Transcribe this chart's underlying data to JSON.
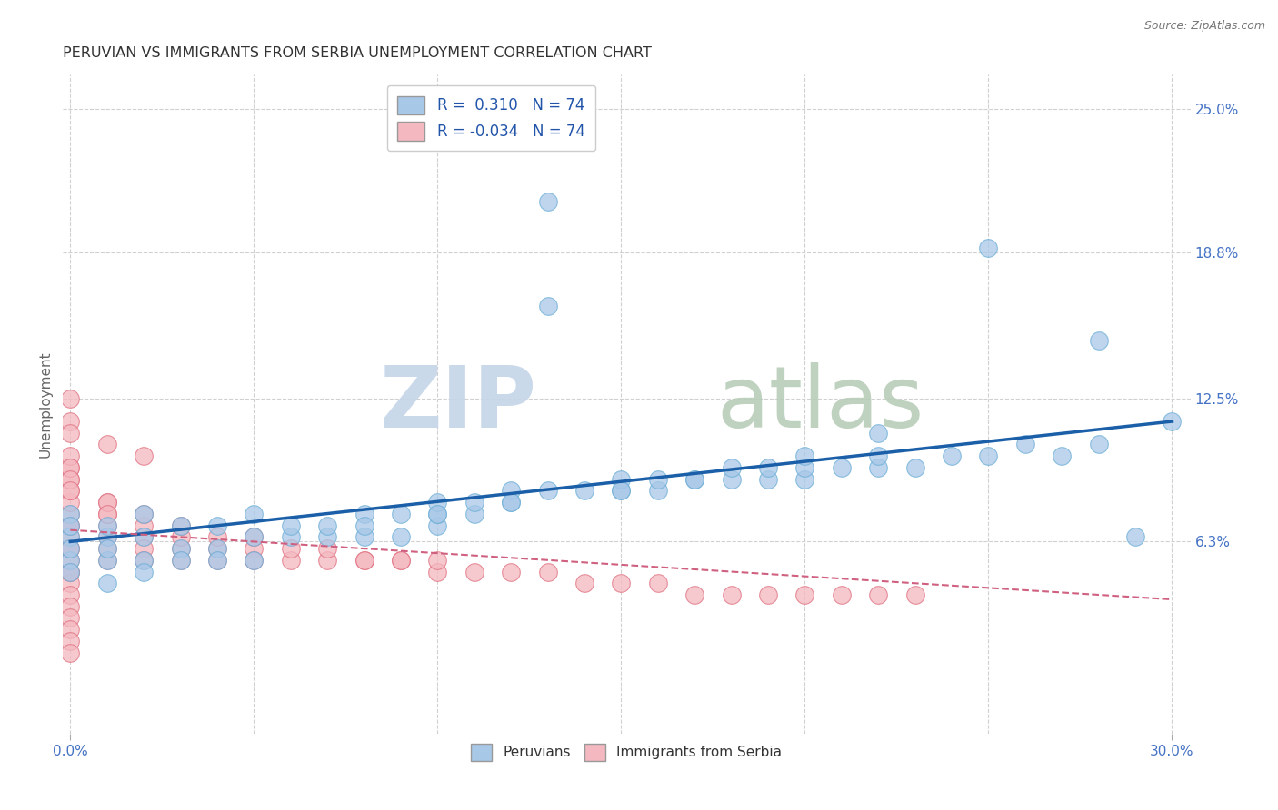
{
  "title": "PERUVIAN VS IMMIGRANTS FROM SERBIA UNEMPLOYMENT CORRELATION CHART",
  "source": "Source: ZipAtlas.com",
  "ylabel": "Unemployment",
  "xlim": [
    -0.002,
    0.305
  ],
  "ylim": [
    -0.02,
    0.265
  ],
  "ytick_labels_right": [
    "6.3%",
    "12.5%",
    "18.8%",
    "25.0%"
  ],
  "ytick_vals_right": [
    0.063,
    0.125,
    0.188,
    0.25
  ],
  "blue_color": "#a8c8e8",
  "blue_edge_color": "#6baed6",
  "pink_color": "#f4b8c0",
  "pink_edge_color": "#e07080",
  "blue_line_color": "#1a5fa8",
  "pink_line_color": "#d06080",
  "background_color": "#ffffff",
  "grid_color": "#d0d0d0",
  "blue_scatter_x": [
    0.0,
    0.0,
    0.0,
    0.0,
    0.0,
    0.0,
    0.01,
    0.01,
    0.01,
    0.01,
    0.01,
    0.02,
    0.02,
    0.02,
    0.02,
    0.03,
    0.03,
    0.03,
    0.04,
    0.04,
    0.04,
    0.05,
    0.05,
    0.05,
    0.06,
    0.06,
    0.07,
    0.07,
    0.08,
    0.08,
    0.09,
    0.09,
    0.1,
    0.1,
    0.1,
    0.11,
    0.11,
    0.12,
    0.12,
    0.13,
    0.13,
    0.14,
    0.15,
    0.15,
    0.16,
    0.16,
    0.17,
    0.18,
    0.18,
    0.19,
    0.19,
    0.2,
    0.2,
    0.21,
    0.22,
    0.22,
    0.23,
    0.24,
    0.25,
    0.26,
    0.27,
    0.28,
    0.29,
    0.3,
    0.13,
    0.25,
    0.28,
    0.22,
    0.2,
    0.17,
    0.15,
    0.12,
    0.1,
    0.08
  ],
  "blue_scatter_y": [
    0.055,
    0.065,
    0.075,
    0.05,
    0.06,
    0.07,
    0.055,
    0.065,
    0.07,
    0.045,
    0.06,
    0.055,
    0.065,
    0.075,
    0.05,
    0.06,
    0.07,
    0.055,
    0.06,
    0.07,
    0.055,
    0.065,
    0.075,
    0.055,
    0.065,
    0.07,
    0.065,
    0.07,
    0.065,
    0.075,
    0.065,
    0.075,
    0.07,
    0.075,
    0.08,
    0.075,
    0.08,
    0.08,
    0.085,
    0.085,
    0.21,
    0.085,
    0.085,
    0.09,
    0.085,
    0.09,
    0.09,
    0.09,
    0.095,
    0.09,
    0.095,
    0.09,
    0.095,
    0.095,
    0.095,
    0.1,
    0.095,
    0.1,
    0.1,
    0.105,
    0.1,
    0.105,
    0.065,
    0.115,
    0.165,
    0.19,
    0.15,
    0.11,
    0.1,
    0.09,
    0.085,
    0.08,
    0.075,
    0.07
  ],
  "pink_scatter_x": [
    0.0,
    0.0,
    0.0,
    0.0,
    0.0,
    0.0,
    0.0,
    0.0,
    0.0,
    0.0,
    0.0,
    0.0,
    0.0,
    0.0,
    0.0,
    0.0,
    0.0,
    0.0,
    0.0,
    0.0,
    0.01,
    0.01,
    0.01,
    0.01,
    0.01,
    0.01,
    0.02,
    0.02,
    0.02,
    0.02,
    0.03,
    0.03,
    0.03,
    0.04,
    0.04,
    0.05,
    0.05,
    0.06,
    0.07,
    0.08,
    0.09,
    0.1,
    0.11,
    0.12,
    0.13,
    0.14,
    0.15,
    0.16,
    0.17,
    0.18,
    0.19,
    0.2,
    0.21,
    0.22,
    0.23,
    0.0,
    0.0,
    0.0,
    0.0,
    0.01,
    0.01,
    0.02,
    0.03,
    0.04,
    0.05,
    0.06,
    0.07,
    0.08,
    0.09,
    0.1,
    0.0,
    0.0,
    0.0,
    0.01,
    0.02
  ],
  "pink_scatter_y": [
    0.065,
    0.07,
    0.075,
    0.08,
    0.085,
    0.09,
    0.095,
    0.05,
    0.055,
    0.06,
    0.045,
    0.04,
    0.035,
    0.03,
    0.025,
    0.02,
    0.015,
    0.05,
    0.06,
    0.07,
    0.065,
    0.07,
    0.075,
    0.055,
    0.06,
    0.08,
    0.065,
    0.06,
    0.055,
    0.07,
    0.06,
    0.055,
    0.065,
    0.06,
    0.055,
    0.06,
    0.055,
    0.055,
    0.055,
    0.055,
    0.055,
    0.05,
    0.05,
    0.05,
    0.05,
    0.045,
    0.045,
    0.045,
    0.04,
    0.04,
    0.04,
    0.04,
    0.04,
    0.04,
    0.04,
    0.1,
    0.095,
    0.09,
    0.085,
    0.08,
    0.075,
    0.075,
    0.07,
    0.065,
    0.065,
    0.06,
    0.06,
    0.055,
    0.055,
    0.055,
    0.125,
    0.115,
    0.11,
    0.105,
    0.1
  ],
  "blue_trend_x": [
    0.0,
    0.3
  ],
  "blue_trend_y": [
    0.063,
    0.115
  ],
  "pink_trend_x": [
    0.0,
    0.3
  ],
  "pink_trend_y": [
    0.068,
    0.038
  ]
}
